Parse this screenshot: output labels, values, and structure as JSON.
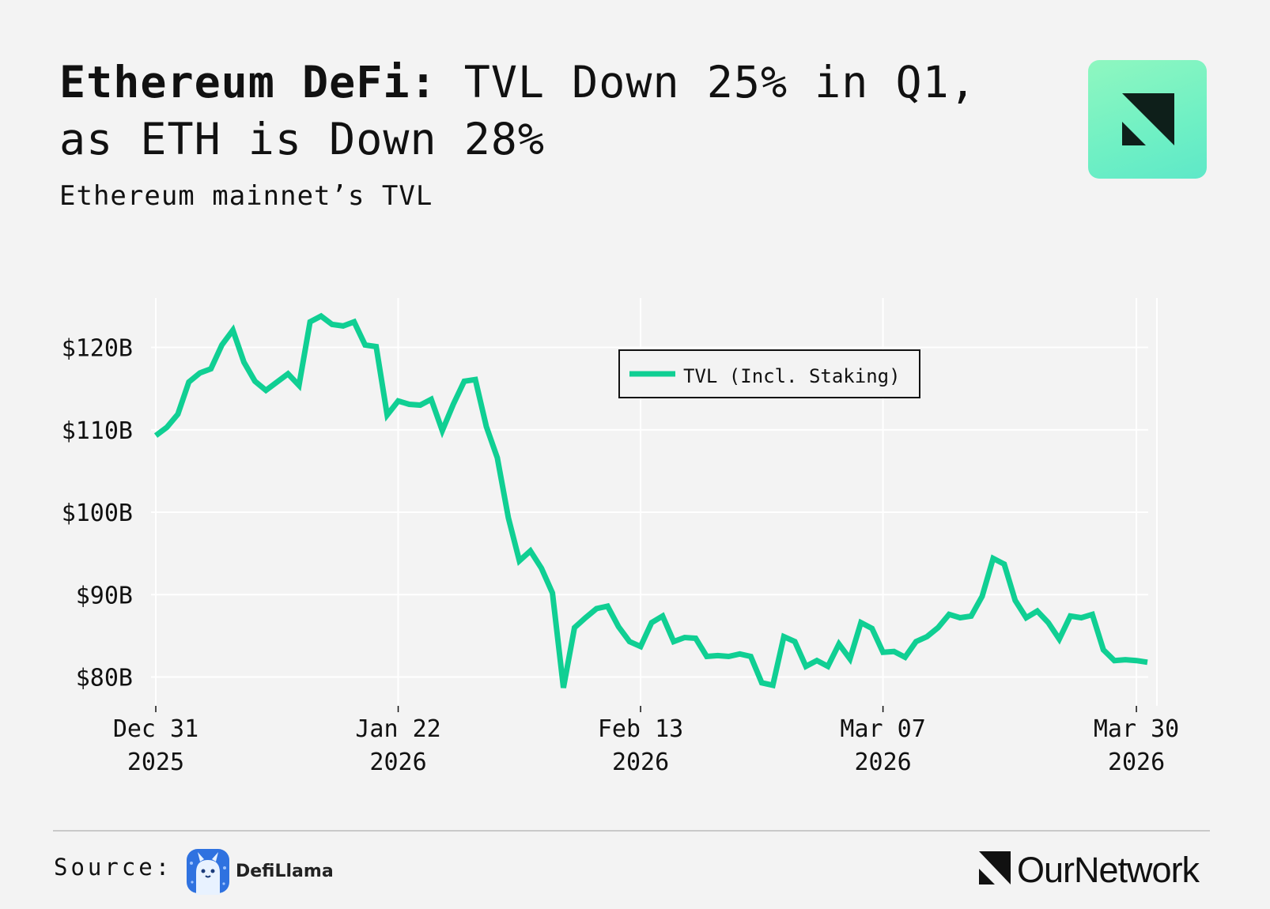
{
  "header": {
    "title_bold": "Ethereum DeFi:",
    "title_rest": " TVL Down 25% in Q1, as ETH is Down 28%",
    "subtitle": "Ethereum mainnet’s TVL",
    "logo_icon": "ournetwork-logo-icon"
  },
  "footer": {
    "source_label": "Source:",
    "source_name": "DefiLlama",
    "source_icon": "defillama-llama-icon",
    "brand_name": "OurNetwork",
    "brand_icon": "ournetwork-mark-icon"
  },
  "colors": {
    "line": "#10cf93",
    "background": "#f3f3f3",
    "grid": "#ffffff",
    "badge": "#7ef5c2"
  },
  "chart_data": {
    "type": "line",
    "title": "Ethereum DeFi: TVL Down 25% in Q1, as ETH is Down 28%",
    "subtitle": "Ethereum mainnet’s TVL",
    "xlabel": "",
    "ylabel": "",
    "x_range": [
      "2025-12-31",
      "2026-03-31"
    ],
    "ylim": [
      76.5,
      126
    ],
    "yticks": [
      80,
      90,
      100,
      110,
      120
    ],
    "ytick_labels": [
      "$80B",
      "$90B",
      "$100B",
      "$110B",
      "$120B"
    ],
    "xticks": [
      "2025-12-31",
      "2026-01-22",
      "2026-02-13",
      "2026-03-07",
      "2026-03-30"
    ],
    "xtick_labels": [
      [
        "Dec 31",
        "2025"
      ],
      [
        "Jan 22",
        "2026"
      ],
      [
        "Feb 13",
        "2026"
      ],
      [
        "Mar 07",
        "2026"
      ],
      [
        "Mar 30",
        "2026"
      ]
    ],
    "grid": true,
    "legend_position": "top-center",
    "series": [
      {
        "name": "TVL (Incl. Staking)",
        "unit": "$B",
        "x": [
          "2025-12-31",
          "2026-01-01",
          "2026-01-02",
          "2026-01-03",
          "2026-01-04",
          "2026-01-05",
          "2026-01-06",
          "2026-01-07",
          "2026-01-08",
          "2026-01-09",
          "2026-01-10",
          "2026-01-11",
          "2026-01-12",
          "2026-01-13",
          "2026-01-14",
          "2026-01-15",
          "2026-01-16",
          "2026-01-17",
          "2026-01-18",
          "2026-01-19",
          "2026-01-20",
          "2026-01-21",
          "2026-01-22",
          "2026-01-23",
          "2026-01-24",
          "2026-01-25",
          "2026-01-26",
          "2026-01-27",
          "2026-01-28",
          "2026-01-29",
          "2026-01-30",
          "2026-01-31",
          "2026-02-01",
          "2026-02-02",
          "2026-02-03",
          "2026-02-04",
          "2026-02-05",
          "2026-02-06",
          "2026-02-07",
          "2026-02-08",
          "2026-02-09",
          "2026-02-10",
          "2026-02-11",
          "2026-02-12",
          "2026-02-13",
          "2026-02-14",
          "2026-02-15",
          "2026-02-16",
          "2026-02-17",
          "2026-02-18",
          "2026-02-19",
          "2026-02-20",
          "2026-02-21",
          "2026-02-22",
          "2026-02-23",
          "2026-02-24",
          "2026-02-25",
          "2026-02-26",
          "2026-02-27",
          "2026-02-28",
          "2026-03-01",
          "2026-03-02",
          "2026-03-03",
          "2026-03-04",
          "2026-03-05",
          "2026-03-06",
          "2026-03-07",
          "2026-03-08",
          "2026-03-09",
          "2026-03-10",
          "2026-03-11",
          "2026-03-12",
          "2026-03-13",
          "2026-03-14",
          "2026-03-15",
          "2026-03-16",
          "2026-03-17",
          "2026-03-18",
          "2026-03-19",
          "2026-03-20",
          "2026-03-21",
          "2026-03-22",
          "2026-03-23",
          "2026-03-24",
          "2026-03-25",
          "2026-03-26",
          "2026-03-27",
          "2026-03-28",
          "2026-03-29",
          "2026-03-30",
          "2026-03-31"
        ],
        "values": [
          109.3,
          110.3,
          111.9,
          115.8,
          116.9,
          117.4,
          120.3,
          122.1,
          118.2,
          115.9,
          114.8,
          115.8,
          116.8,
          115.4,
          123.1,
          123.8,
          122.8,
          122.6,
          123.1,
          120.3,
          120.1,
          111.8,
          113.5,
          113.1,
          113.0,
          113.7,
          109.9,
          113.1,
          115.9,
          116.1,
          110.4,
          106.6,
          99.3,
          94.1,
          95.3,
          93.2,
          90.2,
          78.7,
          86.0,
          87.2,
          88.3,
          88.6,
          86.1,
          84.3,
          83.7,
          86.6,
          87.4,
          84.3,
          84.8,
          84.7,
          82.5,
          82.6,
          82.5,
          82.8,
          82.5,
          79.3,
          79.0,
          84.9,
          84.3,
          81.3,
          82.0,
          81.3,
          84.0,
          82.2,
          86.6,
          85.9,
          83.0,
          83.1,
          82.4,
          84.3,
          84.9,
          86.0,
          87.6,
          87.2,
          87.4,
          89.8,
          94.4,
          93.7,
          89.3,
          87.2,
          88.0,
          86.6,
          84.6,
          87.4,
          87.2,
          87.6,
          83.3,
          82.0,
          82.1,
          82.0,
          81.8
        ]
      }
    ]
  }
}
